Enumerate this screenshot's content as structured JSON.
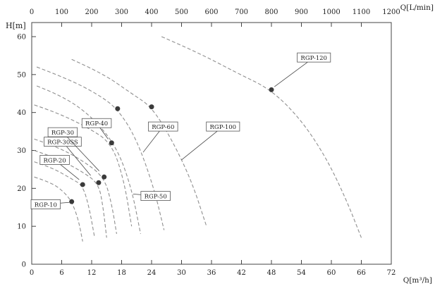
{
  "chart_data": {
    "type": "line",
    "title": "",
    "top_axis": {
      "label": "Q[L/min]",
      "min": 0,
      "max": 1200,
      "step": 100
    },
    "bottom_axis": {
      "label": "Q[m³/h]",
      "min": 0,
      "max": 72,
      "step": 6
    },
    "left_axis": {
      "label": "H[m]",
      "min": 0,
      "max": 60,
      "step": 10
    },
    "grid": false,
    "legend": "inline-boxed-labels",
    "curve_style": "dashed",
    "curve_color": "#8f8f8f",
    "point_color": "#3a3a3a",
    "axis_color": "#444444",
    "series": [
      {
        "name": "RGP-10",
        "points": [
          [
            0.5,
            23
          ],
          [
            4,
            21.5
          ],
          [
            6.5,
            19
          ],
          [
            8,
            16.5
          ],
          [
            9.3,
            12
          ],
          [
            10.2,
            6
          ]
        ],
        "rated_point": [
          8,
          16.5
        ],
        "label_pos": [
          2.8,
          15.8
        ],
        "leader_to": [
          7.5,
          16.3
        ]
      },
      {
        "name": "RGP-20",
        "points": [
          [
            0.5,
            27
          ],
          [
            4,
            25.5
          ],
          [
            8,
            22.5
          ],
          [
            10.2,
            20.8
          ],
          [
            11.5,
            15
          ],
          [
            12.6,
            7
          ]
        ],
        "rated_point": [
          10.2,
          21
        ],
        "label_pos": [
          4.6,
          27.5
        ],
        "leader_to": [
          9.5,
          22.3
        ]
      },
      {
        "name": "RGP-30SS",
        "points": [
          [
            0.5,
            30
          ],
          [
            5,
            28
          ],
          [
            10,
            24.5
          ],
          [
            13.4,
            21.3
          ],
          [
            14.3,
            15
          ],
          [
            15,
            7
          ]
        ],
        "rated_point": [
          13.4,
          21.5
        ],
        "label_pos": [
          6.2,
          32.3
        ],
        "leader_to": [
          11.8,
          23.4
        ]
      },
      {
        "name": "RGP-30",
        "points": [
          [
            0.5,
            33
          ],
          [
            5,
            31
          ],
          [
            10,
            27.5
          ],
          [
            14.5,
            23
          ],
          [
            16,
            16
          ],
          [
            17,
            8
          ]
        ],
        "rated_point": [
          14.5,
          23
        ],
        "label_pos": [
          6.2,
          34.8
        ],
        "leader_to": [
          13.5,
          24.6
        ]
      },
      {
        "name": "RGP-40",
        "points": [
          [
            0.5,
            42
          ],
          [
            5,
            40
          ],
          [
            11,
            36.2
          ],
          [
            16,
            32
          ],
          [
            18.5,
            22
          ],
          [
            20,
            10
          ]
        ],
        "rated_point": [
          16,
          32
        ],
        "label_pos": [
          13,
          37.2
        ],
        "leader_to": [
          15.3,
          33
        ]
      },
      {
        "name": "RGP-50",
        "points": [
          [
            1,
            47
          ],
          [
            6,
            44.5
          ],
          [
            12,
            39
          ],
          [
            17,
            31
          ],
          [
            20,
            20
          ],
          [
            21.8,
            8
          ]
        ],
        "rated_point": null,
        "label_pos": [
          24.8,
          18
        ],
        "leader_to": [
          20.3,
          18.5
        ]
      },
      {
        "name": "RGP-60",
        "points": [
          [
            1,
            52
          ],
          [
            7,
            49
          ],
          [
            13,
            45
          ],
          [
            17.2,
            41
          ],
          [
            21,
            33
          ],
          [
            24.5,
            20
          ],
          [
            26.5,
            9
          ]
        ],
        "rated_point": [
          17.2,
          41
        ],
        "label_pos": [
          26.3,
          36.3
        ],
        "leader_to": [
          22.3,
          29.5
        ]
      },
      {
        "name": "RGP-100",
        "points": [
          [
            8,
            54
          ],
          [
            14,
            50.5
          ],
          [
            20,
            45
          ],
          [
            24,
            41.5
          ],
          [
            28,
            33
          ],
          [
            32,
            22
          ],
          [
            35,
            10
          ]
        ],
        "rated_point": [
          24,
          41.5
        ],
        "label_pos": [
          38.3,
          36.3
        ],
        "leader_to": [
          30,
          27.5
        ]
      },
      {
        "name": "RGP-120",
        "points": [
          [
            26,
            60
          ],
          [
            33,
            56
          ],
          [
            41,
            50.5
          ],
          [
            48,
            46
          ],
          [
            54,
            38
          ],
          [
            59,
            28
          ],
          [
            63,
            17
          ],
          [
            66,
            7
          ]
        ],
        "rated_point": [
          48,
          46
        ],
        "label_pos": [
          56.5,
          54.5
        ],
        "leader_to": [
          48.6,
          46.8
        ]
      }
    ]
  }
}
